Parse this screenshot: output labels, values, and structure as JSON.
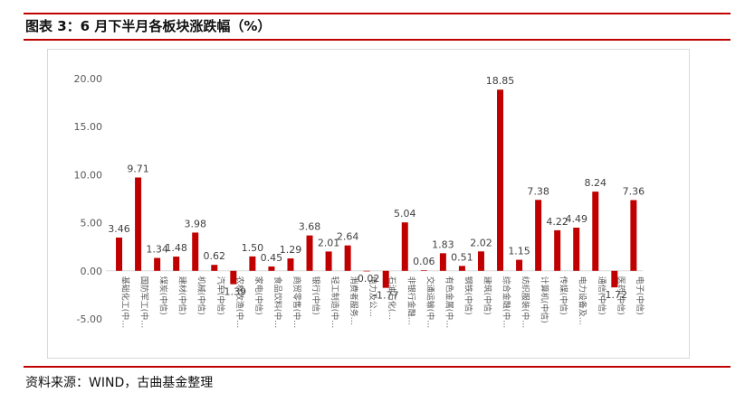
{
  "title": "图表 3：6 月下半月各板块涨跌幅（%）",
  "source": "资料来源：WIND，古曲基金整理",
  "colors": {
    "bar": "#c00000",
    "rule": "#c00000",
    "axis_text": "#595959"
  },
  "chart_data": {
    "type": "bar",
    "title": "",
    "xlabel": "",
    "ylabel": "",
    "ylim": [
      -5,
      20
    ],
    "yticks": [
      "-5.00",
      "0.00",
      "5.00",
      "10.00",
      "15.00",
      "20.00"
    ],
    "grid": false,
    "legend": "none",
    "categories": [
      "基础化工(中…",
      "国防军工(中…",
      "煤炭(中信)",
      "建材(中信)",
      "机械(中信)",
      "汽车(中信)",
      "农林牧渔(中…",
      "家电(中信)",
      "食品饮料(中…",
      "商贸零售(中…",
      "银行(中信)",
      "轻工制造(中…",
      "消费者服务…",
      "电力及公…",
      "石油石化(…",
      "非银行金融…",
      "交通运输(中…",
      "有色金属(中…",
      "钢铁(中信)",
      "建筑(中信)",
      "综合金融(中…",
      "纺织服装(中…",
      "计算机(中信)",
      "传媒(中信)",
      "电力设备及…",
      "通信(中信)",
      "医药(中信)",
      "电子(中信)"
    ],
    "values": [
      3.46,
      9.71,
      1.34,
      1.48,
      3.98,
      0.62,
      -1.39,
      1.5,
      0.45,
      1.29,
      3.68,
      2.01,
      2.64,
      -0.02,
      -1.77,
      5.04,
      0.06,
      1.83,
      0.51,
      2.02,
      18.85,
      1.15,
      7.38,
      4.22,
      4.49,
      8.24,
      -1.72,
      7.36
    ],
    "value_labels": [
      "3.46",
      "9.71",
      "1.34",
      "1.48",
      "3.98",
      "0.62",
      "-1.39",
      "1.50",
      "0.45",
      "1.29",
      "3.68",
      "2.01",
      "2.64",
      "-0.02",
      "-1.77",
      "5.04",
      "0.06",
      "1.83",
      "0.51",
      "2.02",
      "18.85",
      "1.15",
      "7.38",
      "4.22",
      "4.49",
      "8.24",
      "-1.72",
      "7.36"
    ]
  }
}
